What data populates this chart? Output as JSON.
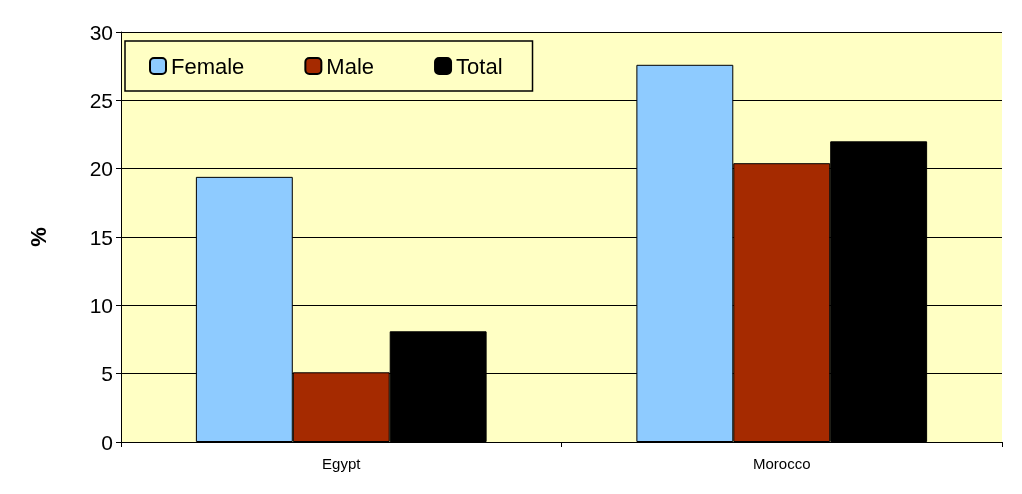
{
  "chart_data": {
    "type": "bar",
    "ylabel": "%",
    "categories": [
      "Egypt",
      "Morocco"
    ],
    "series": [
      {
        "name": "Female",
        "color": "#8ecbff",
        "values": [
          19.4,
          27.6
        ]
      },
      {
        "name": "Male",
        "color": "#a52a00",
        "values": [
          5.1,
          20.4
        ]
      },
      {
        "name": "Total",
        "color": "#000000",
        "values": [
          8.1,
          22.0
        ]
      }
    ],
    "ylim": [
      0,
      30
    ],
    "yticks": [
      0,
      5,
      10,
      15,
      20,
      25,
      30
    ],
    "grid": "y",
    "legend": "top left"
  }
}
